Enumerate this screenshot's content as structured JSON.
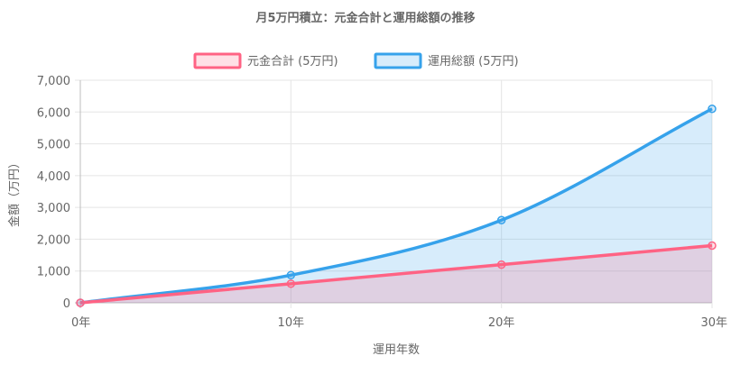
{
  "chart_data": {
    "type": "area",
    "title": "月5万円積立：元金合計と運用総額の推移",
    "xlabel": "運用年数",
    "ylabel": "金額（万円）",
    "x": [
      "0年",
      "10年",
      "20年",
      "30年"
    ],
    "x_values": [
      0,
      10,
      20,
      30
    ],
    "xlim": [
      0,
      30
    ],
    "ylim": [
      0,
      7000
    ],
    "yticks": [
      0,
      1000,
      2000,
      3000,
      4000,
      5000,
      6000,
      7000
    ],
    "ytick_labels": [
      "0",
      "1,000",
      "2,000",
      "3,000",
      "4,000",
      "5,000",
      "6,000",
      "7,000"
    ],
    "grid": true,
    "legend_position": "top",
    "series": [
      {
        "name": "元金合計 (5万円)",
        "values": [
          0,
          600,
          1200,
          1800
        ],
        "color": "#ff6384",
        "fill": "rgba(255,99,132,0.2)"
      },
      {
        "name": "運用総額 (5万円)",
        "values": [
          0,
          870,
          2600,
          6100
        ],
        "color": "#36a2eb",
        "fill": "rgba(54,162,235,0.2)"
      }
    ]
  }
}
